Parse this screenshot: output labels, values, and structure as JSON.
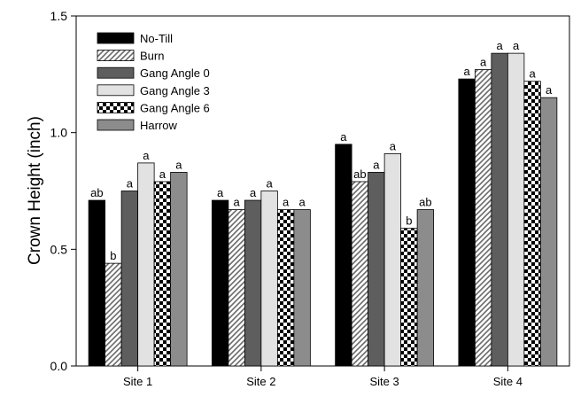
{
  "chart_data": {
    "type": "bar",
    "title": "",
    "xlabel": "",
    "ylabel": "Crown Height (inch)",
    "ylim": [
      0,
      1.5
    ],
    "yticks": [
      "0.0",
      "0.5",
      "1.0",
      "1.5"
    ],
    "ytick_values": [
      0,
      0.5,
      1.0,
      1.5
    ],
    "grid": false,
    "legend_position": "top-left",
    "categories": [
      "Site 1",
      "Site 2",
      "Site 3",
      "Site 4"
    ],
    "series": [
      {
        "name": "No-Till",
        "pattern": "solid-black",
        "color": "#000000",
        "values": [
          0.71,
          0.71,
          0.95,
          1.23
        ],
        "labels": [
          "ab",
          "a",
          "a",
          "a"
        ]
      },
      {
        "name": "Burn",
        "pattern": "diagonal-hatch",
        "color": "#909090",
        "values": [
          0.44,
          0.67,
          0.79,
          1.27
        ],
        "labels": [
          "b",
          "a",
          "ab",
          "a"
        ]
      },
      {
        "name": "Gang Angle 0",
        "pattern": "solid-dark-gray",
        "color": "#5e5e5e",
        "values": [
          0.75,
          0.71,
          0.83,
          1.34
        ],
        "labels": [
          "a",
          "a",
          "a",
          "a"
        ]
      },
      {
        "name": "Gang Angle 3",
        "pattern": "solid-light-gray",
        "color": "#e2e2e2",
        "values": [
          0.87,
          0.75,
          0.91,
          1.34
        ],
        "labels": [
          "a",
          "a",
          "a",
          "a"
        ]
      },
      {
        "name": "Gang Angle 6",
        "pattern": "checkerboard",
        "color": "#000000",
        "values": [
          0.79,
          0.67,
          0.59,
          1.22
        ],
        "labels": [
          "a",
          "a",
          "b",
          "a"
        ]
      },
      {
        "name": "Harrow",
        "pattern": "solid-medium-gray",
        "color": "#8c8c8c",
        "values": [
          0.83,
          0.67,
          0.67,
          1.15
        ],
        "labels": [
          "a",
          "a",
          "ab",
          "a"
        ]
      }
    ]
  }
}
